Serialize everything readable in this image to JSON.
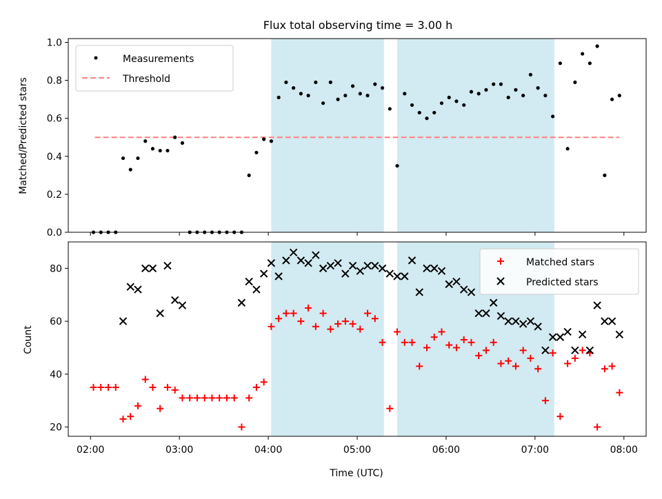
{
  "title": "Flux total observing time = 3.00 h",
  "colors": {
    "measurement": "#000000",
    "threshold": "#ff7f7f",
    "matched": "#ff0000",
    "predicted": "#000000",
    "span": "#add8e6"
  },
  "chart_data": [
    {
      "type": "scatter",
      "ylabel": "Matched/Predicted stars",
      "ylim": [
        0,
        1.02
      ],
      "yticks": [
        0.0,
        0.2,
        0.4,
        0.6,
        0.8,
        1.0
      ],
      "ytick_labels": [
        "0.0",
        "0.2",
        "0.4",
        "0.6",
        "0.8",
        "1.0"
      ],
      "xlim": [
        "01:45",
        "08:15"
      ],
      "legend_position": "top-left",
      "legend": [
        "Measurements",
        "Threshold"
      ],
      "shaded_spans": [
        [
          "04:02",
          "05:18"
        ],
        [
          "05:27",
          "07:13"
        ]
      ],
      "threshold": {
        "name": "Threshold",
        "y": 0.5,
        "x": [
          "02:03",
          "07:57"
        ]
      },
      "series": [
        {
          "name": "Measurements",
          "x": [
            "02:02",
            "02:07",
            "02:12",
            "02:17",
            "02:22",
            "02:27",
            "02:32",
            "02:37",
            "02:42",
            "02:47",
            "02:52",
            "02:57",
            "03:02",
            "03:07",
            "03:12",
            "03:17",
            "03:22",
            "03:27",
            "03:32",
            "03:37",
            "03:42",
            "03:47",
            "03:52",
            "03:57",
            "04:02",
            "04:07",
            "04:12",
            "04:17",
            "04:22",
            "04:27",
            "04:32",
            "04:37",
            "04:42",
            "04:47",
            "04:52",
            "04:57",
            "05:02",
            "05:07",
            "05:12",
            "05:17",
            "05:22",
            "05:27",
            "05:32",
            "05:37",
            "05:42",
            "05:47",
            "05:52",
            "05:57",
            "06:02",
            "06:07",
            "06:12",
            "06:17",
            "06:22",
            "06:27",
            "06:32",
            "06:37",
            "06:42",
            "06:47",
            "06:52",
            "06:57",
            "07:02",
            "07:07",
            "07:12",
            "07:17",
            "07:22",
            "07:27",
            "07:32",
            "07:37",
            "07:42",
            "07:47",
            "07:52",
            "07:57"
          ],
          "y": [
            0.0,
            0.0,
            0.0,
            0.0,
            0.39,
            0.33,
            0.39,
            0.48,
            0.44,
            0.43,
            0.43,
            0.5,
            0.47,
            0.0,
            0.0,
            0.0,
            0.0,
            0.0,
            0.0,
            0.0,
            0.0,
            0.3,
            0.42,
            0.49,
            0.48,
            0.71,
            0.79,
            0.76,
            0.73,
            0.72,
            0.79,
            0.68,
            0.79,
            0.7,
            0.72,
            0.77,
            0.73,
            0.72,
            0.78,
            0.76,
            0.65,
            0.35,
            0.73,
            0.67,
            0.63,
            0.6,
            0.63,
            0.68,
            0.71,
            0.69,
            0.67,
            0.74,
            0.73,
            0.75,
            0.78,
            0.78,
            0.71,
            0.75,
            0.72,
            0.83,
            0.76,
            0.72,
            0.61,
            0.89,
            0.44,
            0.79,
            0.94,
            0.89,
            0.98,
            0.3,
            0.7,
            0.72
          ]
        }
      ]
    },
    {
      "type": "scatter",
      "ylabel": "Count",
      "xlabel": "Time (UTC)",
      "ylim": [
        16.5,
        90
      ],
      "yticks": [
        20,
        40,
        60,
        80
      ],
      "ytick_labels": [
        "20",
        "40",
        "60",
        "80"
      ],
      "xlim": [
        "01:45",
        "08:15"
      ],
      "xticks": [
        "02:00",
        "03:00",
        "04:00",
        "05:00",
        "06:00",
        "07:00",
        "08:00"
      ],
      "xtick_labels": [
        "02:00",
        "03:00",
        "04:00",
        "05:00",
        "06:00",
        "07:00",
        "08:00"
      ],
      "legend_position": "top-right",
      "legend": [
        "Matched stars",
        "Predicted stars"
      ],
      "shaded_spans": [
        [
          "04:02",
          "05:18"
        ],
        [
          "05:27",
          "07:13"
        ]
      ],
      "series": [
        {
          "name": "Matched stars",
          "x": [
            "02:02",
            "02:07",
            "02:12",
            "02:17",
            "02:22",
            "02:27",
            "02:32",
            "02:37",
            "02:42",
            "02:47",
            "02:52",
            "02:57",
            "03:02",
            "03:07",
            "03:12",
            "03:17",
            "03:22",
            "03:27",
            "03:32",
            "03:37",
            "03:42",
            "03:47",
            "03:52",
            "03:57",
            "04:02",
            "04:07",
            "04:12",
            "04:17",
            "04:22",
            "04:27",
            "04:32",
            "04:37",
            "04:42",
            "04:47",
            "04:52",
            "04:57",
            "05:02",
            "05:07",
            "05:12",
            "05:17",
            "05:22",
            "05:27",
            "05:32",
            "05:37",
            "05:42",
            "05:47",
            "05:52",
            "05:57",
            "06:02",
            "06:07",
            "06:12",
            "06:17",
            "06:22",
            "06:27",
            "06:32",
            "06:37",
            "06:42",
            "06:47",
            "06:52",
            "06:57",
            "07:02",
            "07:07",
            "07:12",
            "07:17",
            "07:22",
            "07:27",
            "07:32",
            "07:37",
            "07:42",
            "07:47",
            "07:52",
            "07:57"
          ],
          "y": [
            35,
            35,
            35,
            35,
            23,
            24,
            28,
            38,
            35,
            27,
            35,
            34,
            31,
            31,
            31,
            31,
            31,
            31,
            31,
            31,
            20,
            31,
            35,
            37,
            58,
            61,
            63,
            63,
            60,
            65,
            58,
            63,
            57,
            59,
            60,
            59,
            57,
            63,
            61,
            52,
            27,
            56,
            52,
            52,
            43,
            50,
            54,
            56,
            51,
            50,
            53,
            52,
            47,
            49,
            52,
            44,
            45,
            43,
            49,
            46,
            42,
            30,
            48,
            24,
            44,
            46,
            49,
            48,
            20,
            42,
            43,
            33
          ]
        },
        {
          "name": "Predicted stars",
          "x": [
            "02:22",
            "02:27",
            "02:32",
            "02:37",
            "02:42",
            "02:47",
            "02:52",
            "02:57",
            "03:02",
            "03:42",
            "03:47",
            "03:52",
            "03:57",
            "04:02",
            "04:07",
            "04:12",
            "04:17",
            "04:22",
            "04:27",
            "04:32",
            "04:37",
            "04:42",
            "04:47",
            "04:52",
            "04:57",
            "05:02",
            "05:07",
            "05:12",
            "05:17",
            "05:22",
            "05:27",
            "05:32",
            "05:37",
            "05:42",
            "05:47",
            "05:52",
            "05:57",
            "06:02",
            "06:07",
            "06:12",
            "06:17",
            "06:22",
            "06:27",
            "06:32",
            "06:37",
            "06:42",
            "06:47",
            "06:52",
            "06:57",
            "07:02",
            "07:07",
            "07:12",
            "07:17",
            "07:22",
            "07:27",
            "07:32",
            "07:37",
            "07:42",
            "07:47",
            "07:52",
            "07:57"
          ],
          "y": [
            60,
            73,
            72,
            80,
            80,
            63,
            81,
            68,
            66,
            67,
            75,
            72,
            78,
            82,
            77,
            83,
            86,
            83,
            82,
            85,
            80,
            81,
            82,
            78,
            81,
            79,
            81,
            81,
            80,
            78,
            77,
            77,
            83,
            71,
            80,
            80,
            79,
            74,
            75,
            72,
            71,
            63,
            63,
            67,
            62,
            60,
            60,
            59,
            60,
            58,
            49,
            54,
            54,
            56,
            49,
            55,
            49,
            66,
            60,
            60,
            55
          ]
        }
      ]
    }
  ]
}
